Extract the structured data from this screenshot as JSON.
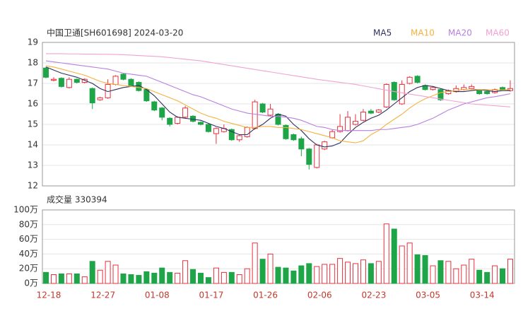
{
  "chart_data": [
    {
      "type": "candlestick",
      "title": "中国卫通[SH601698] 2024-03-20",
      "open": [
        17.75,
        17.15,
        17.25,
        16.8,
        17.2,
        17.05,
        16.75,
        16.2,
        16.3,
        16.95,
        17.45,
        17.2,
        17.05,
        16.7,
        16.1,
        15.8,
        15.3,
        15.05,
        15.35,
        15.4,
        15.1,
        15.0,
        14.55,
        14.65,
        14.75,
        14.25,
        14.4,
        14.8,
        16.0,
        15.45,
        15.5,
        14.95,
        14.5,
        14.3,
        13.8,
        12.9,
        13.8,
        14.35,
        14.65,
        14.7,
        15.0,
        15.2,
        15.65,
        15.6,
        15.85,
        17.05,
        16.0,
        17.0,
        17.35,
        16.9,
        16.7,
        16.7,
        16.5,
        16.6,
        16.7,
        16.75,
        16.65,
        16.6,
        16.55,
        16.8,
        16.65
      ],
      "close": [
        17.3,
        17.2,
        16.85,
        17.2,
        17.05,
        17.2,
        16.05,
        16.3,
        16.95,
        17.35,
        17.2,
        16.9,
        16.65,
        16.15,
        15.7,
        15.35,
        15.0,
        15.35,
        15.8,
        15.15,
        15.0,
        14.65,
        14.8,
        14.8,
        14.25,
        14.45,
        14.85,
        16.1,
        15.6,
        15.75,
        15.0,
        14.3,
        14.25,
        13.8,
        13.05,
        14.0,
        14.15,
        14.65,
        14.9,
        15.35,
        15.15,
        15.6,
        15.55,
        15.7,
        16.95,
        16.2,
        16.95,
        17.3,
        17.05,
        16.7,
        16.8,
        16.2,
        16.65,
        16.75,
        16.8,
        16.85,
        16.5,
        16.5,
        16.7,
        16.7,
        16.75
      ],
      "high": [
        17.8,
        17.3,
        17.3,
        17.3,
        17.25,
        17.25,
        16.8,
        16.35,
        17.2,
        17.4,
        17.5,
        17.25,
        17.1,
        16.75,
        16.15,
        15.85,
        15.35,
        15.4,
        15.9,
        15.45,
        15.15,
        15.05,
        14.85,
        15.0,
        14.8,
        14.5,
        14.9,
        16.2,
        16.05,
        16.0,
        15.55,
        15.0,
        14.55,
        14.4,
        13.85,
        14.05,
        14.2,
        14.75,
        15.5,
        15.65,
        15.5,
        15.75,
        15.75,
        15.75,
        17.0,
        17.1,
        17.15,
        17.35,
        17.4,
        16.95,
        16.85,
        16.75,
        16.7,
        16.9,
        16.95,
        16.95,
        16.7,
        16.65,
        16.75,
        16.85,
        17.15
      ],
      "low": [
        17.25,
        17.1,
        16.8,
        16.75,
        17.0,
        17.0,
        15.75,
        16.15,
        16.25,
        16.9,
        17.15,
        16.85,
        16.6,
        16.1,
        15.65,
        15.2,
        14.9,
        15.0,
        15.3,
        15.1,
        14.95,
        14.6,
        14.05,
        14.6,
        14.2,
        14.15,
        14.35,
        14.75,
        15.55,
        15.4,
        14.95,
        14.25,
        14.2,
        13.45,
        12.8,
        12.85,
        13.75,
        14.3,
        14.6,
        14.65,
        14.95,
        15.15,
        15.5,
        15.55,
        15.8,
        16.15,
        15.95,
        16.95,
        17.0,
        16.65,
        16.65,
        16.15,
        16.45,
        16.55,
        16.65,
        16.7,
        16.45,
        16.45,
        16.5,
        16.65,
        16.6
      ],
      "up_color": "#e8313d",
      "down_color": "#1da548",
      "series": [
        {
          "name": "MA5",
          "color": "#2f2f5f",
          "values": [
            17.8,
            17.65,
            17.5,
            17.4,
            17.3,
            17.15,
            17.0,
            16.75,
            16.6,
            16.7,
            16.8,
            16.85,
            16.9,
            16.7,
            16.4,
            16.0,
            15.6,
            15.35,
            15.3,
            15.25,
            15.2,
            15.05,
            14.9,
            14.8,
            14.65,
            14.5,
            14.5,
            14.8,
            15.0,
            15.3,
            15.5,
            15.4,
            15.0,
            14.7,
            14.3,
            14.0,
            13.9,
            13.95,
            14.1,
            14.5,
            14.85,
            15.1,
            15.3,
            15.45,
            15.7,
            16.0,
            16.3,
            16.6,
            16.8,
            16.9,
            16.85,
            16.75,
            16.65,
            16.6,
            16.6,
            16.65,
            16.7,
            16.65,
            16.6,
            16.65,
            16.65
          ]
        },
        {
          "name": "MA10",
          "color": "#f4b23e",
          "values": [
            17.85,
            17.8,
            17.7,
            17.6,
            17.5,
            17.4,
            17.25,
            17.1,
            17.0,
            16.95,
            16.9,
            16.85,
            16.8,
            16.75,
            16.6,
            16.45,
            16.3,
            16.15,
            15.95,
            15.75,
            15.55,
            15.4,
            15.3,
            15.15,
            15.05,
            14.95,
            14.85,
            14.85,
            14.9,
            14.9,
            14.85,
            14.85,
            14.8,
            14.75,
            14.65,
            14.55,
            14.45,
            14.35,
            14.2,
            14.15,
            14.1,
            14.2,
            14.5,
            14.7,
            15.0,
            15.25,
            15.5,
            15.8,
            16.05,
            16.25,
            16.4,
            16.55,
            16.6,
            16.65,
            16.7,
            16.72,
            16.7,
            16.7,
            16.68,
            16.68,
            16.7
          ]
        },
        {
          "name": "MA20",
          "color": "#b77fe0",
          "values": [
            18.1,
            18.05,
            18.0,
            17.95,
            17.9,
            17.85,
            17.8,
            17.75,
            17.7,
            17.6,
            17.5,
            17.45,
            17.4,
            17.35,
            17.2,
            17.05,
            16.9,
            16.75,
            16.6,
            16.45,
            16.35,
            16.2,
            16.05,
            15.9,
            15.75,
            15.65,
            15.55,
            15.5,
            15.45,
            15.4,
            15.4,
            15.35,
            15.3,
            15.2,
            15.05,
            14.9,
            14.85,
            14.75,
            14.7,
            14.7,
            14.7,
            14.7,
            14.7,
            14.75,
            14.75,
            14.8,
            14.85,
            14.9,
            15.0,
            15.15,
            15.3,
            15.5,
            15.7,
            15.85,
            16.0,
            16.1,
            16.2,
            16.3,
            16.35,
            16.42,
            16.5
          ]
        },
        {
          "name": "MA60",
          "color": "#f2a2d2",
          "values": [
            18.45,
            18.45,
            18.45,
            18.44,
            18.44,
            18.43,
            18.43,
            18.42,
            18.42,
            18.41,
            18.4,
            18.38,
            18.36,
            18.34,
            18.32,
            18.3,
            18.26,
            18.22,
            18.18,
            18.14,
            18.1,
            18.04,
            17.98,
            17.92,
            17.86,
            17.8,
            17.74,
            17.68,
            17.62,
            17.56,
            17.5,
            17.44,
            17.38,
            17.32,
            17.26,
            17.2,
            17.15,
            17.1,
            17.05,
            17.0,
            16.95,
            16.88,
            16.81,
            16.74,
            16.67,
            16.6,
            16.54,
            16.48,
            16.42,
            16.36,
            16.3,
            16.24,
            16.18,
            16.12,
            16.06,
            16.0,
            15.97,
            15.94,
            15.91,
            15.88,
            15.85
          ]
        }
      ],
      "ylim": [
        12,
        19
      ],
      "yticks": [
        12,
        13,
        14,
        15,
        16,
        17,
        18,
        19
      ],
      "grid": true
    },
    {
      "type": "bar",
      "title": "成交量 330394",
      "categories": [
        "12-18",
        null,
        null,
        null,
        null,
        null,
        null,
        "12-27",
        null,
        null,
        null,
        null,
        null,
        null,
        "01-08",
        null,
        null,
        null,
        null,
        null,
        null,
        "01-17",
        null,
        null,
        null,
        null,
        null,
        null,
        "01-26",
        null,
        null,
        null,
        null,
        null,
        null,
        "02-06",
        null,
        null,
        null,
        null,
        null,
        null,
        "02-23",
        null,
        null,
        null,
        null,
        null,
        null,
        "03-05",
        null,
        null,
        null,
        null,
        null,
        null,
        "03-14",
        null,
        null,
        null,
        null
      ],
      "values": [
        15,
        12,
        13,
        13,
        13,
        9,
        30,
        18,
        30,
        25,
        13,
        12,
        11,
        16,
        14,
        21,
        15,
        14,
        31,
        19,
        14,
        8,
        21,
        15,
        15,
        12,
        20,
        55,
        33,
        40,
        22,
        21,
        17,
        24,
        27,
        23,
        26,
        26,
        34,
        29,
        27,
        32,
        27,
        30,
        81,
        74,
        51,
        55,
        39,
        38,
        24,
        31,
        30,
        20,
        25,
        33,
        18,
        15,
        24,
        20,
        33.04
      ],
      "ylim": [
        0,
        100
      ],
      "yticks": [
        {
          "value": 0,
          "label": "0万"
        },
        {
          "value": 20,
          "label": "20万"
        },
        {
          "value": 40,
          "label": "40万"
        },
        {
          "value": 60,
          "label": "60万"
        },
        {
          "value": 80,
          "label": "80万"
        },
        {
          "value": 100,
          "label": "100万"
        }
      ],
      "grid": true
    }
  ]
}
